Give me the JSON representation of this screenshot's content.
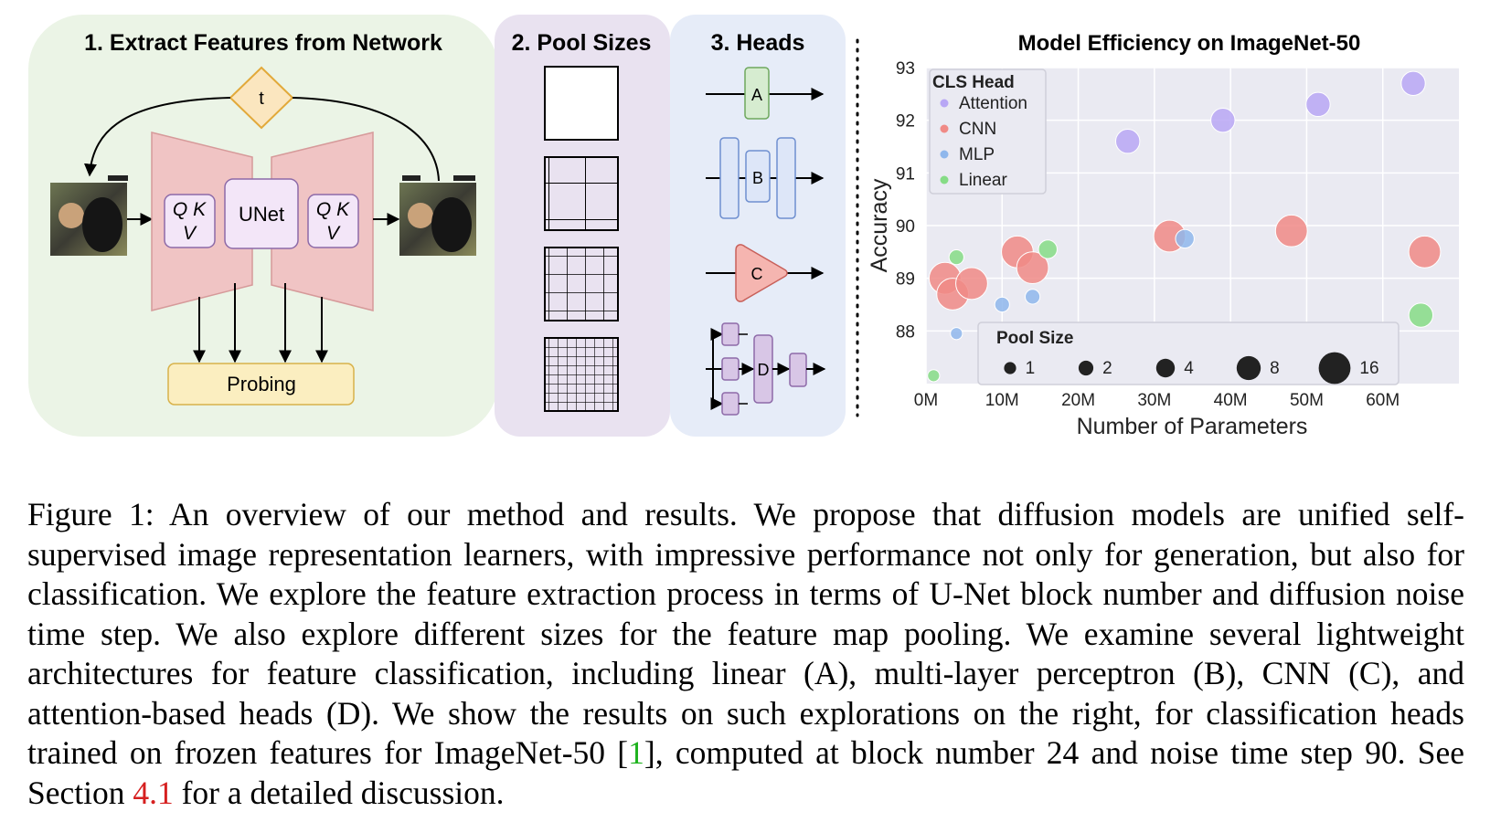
{
  "panel1": {
    "title": "1. Extract Features from Network",
    "timestep": "t",
    "qkv_left": [
      "Q K",
      "V"
    ],
    "unet": "UNet",
    "qkv_right": [
      "Q K",
      "V"
    ],
    "probing": "Probing"
  },
  "panel2": {
    "title": "2. Pool Sizes"
  },
  "panel3": {
    "title": "3. Heads",
    "heads": [
      "A",
      "B",
      "C",
      "D"
    ]
  },
  "colors": {
    "panel1_bg": "#ebf4e6",
    "panel2_bg": "#e9e2f0",
    "panel3_bg": "#e6ecf8",
    "plot_bg": "#eaeaf2",
    "attention": "#b8a7f5",
    "cnn": "#f08a86",
    "mlp": "#8fb7ec",
    "linear": "#86dc86",
    "unet_pink": "#f0c4c4",
    "probing_yellow": "#fbeec0"
  },
  "chart_data": {
    "type": "scatter",
    "title": "Model Efficiency on ImageNet-50",
    "xlabel": "Number of Parameters",
    "ylabel": "Accuracy",
    "xlim": [
      0,
      70
    ],
    "ylim": [
      87.0,
      93.0
    ],
    "x_ticks": [
      0,
      10,
      20,
      30,
      40,
      50,
      60
    ],
    "x_tick_labels": [
      "0M",
      "10M",
      "20M",
      "30M",
      "40M",
      "50M",
      "60M"
    ],
    "y_ticks": [
      88,
      89,
      90,
      91,
      92,
      93
    ],
    "y_tick_labels": [
      "88",
      "89",
      "90",
      "91",
      "92",
      "93"
    ],
    "grid": true,
    "legend_placement": "top-left",
    "legend_title": "CLS Head",
    "size_legend_title": "Pool Size",
    "size_legend": [
      1,
      2,
      4,
      8,
      16
    ],
    "series": [
      {
        "name": "Attention",
        "color": "#b8a7f5",
        "points": [
          {
            "x": 13.5,
            "y": 91.7,
            "pool": 8
          },
          {
            "x": 26.5,
            "y": 91.6,
            "pool": 8
          },
          {
            "x": 39,
            "y": 92.0,
            "pool": 8
          },
          {
            "x": 51.5,
            "y": 92.3,
            "pool": 8
          },
          {
            "x": 64,
            "y": 92.7,
            "pool": 8
          }
        ]
      },
      {
        "name": "CNN",
        "color": "#f08a86",
        "points": [
          {
            "x": 2.5,
            "y": 89.0,
            "pool": 16
          },
          {
            "x": 3.5,
            "y": 88.7,
            "pool": 16
          },
          {
            "x": 6,
            "y": 88.9,
            "pool": 16
          },
          {
            "x": 12,
            "y": 89.5,
            "pool": 16
          },
          {
            "x": 14,
            "y": 89.2,
            "pool": 16
          },
          {
            "x": 32,
            "y": 89.8,
            "pool": 16
          },
          {
            "x": 48,
            "y": 89.9,
            "pool": 16
          },
          {
            "x": 65.5,
            "y": 89.5,
            "pool": 16
          }
        ]
      },
      {
        "name": "MLP",
        "color": "#8fb7ec",
        "points": [
          {
            "x": 4,
            "y": 87.95,
            "pool": 1
          },
          {
            "x": 10,
            "y": 88.5,
            "pool": 2
          },
          {
            "x": 14,
            "y": 88.65,
            "pool": 2
          },
          {
            "x": 34,
            "y": 89.75,
            "pool": 4
          }
        ]
      },
      {
        "name": "Linear",
        "color": "#86dc86",
        "points": [
          {
            "x": 1,
            "y": 87.15,
            "pool": 1
          },
          {
            "x": 4,
            "y": 89.4,
            "pool": 2
          },
          {
            "x": 16,
            "y": 89.55,
            "pool": 4
          },
          {
            "x": 65,
            "y": 88.3,
            "pool": 8
          }
        ]
      }
    ]
  },
  "caption": {
    "part1": "Figure 1: An overview of our method and results. We propose that diffusion models are unified self-supervised image representation learners, with impressive performance not only for generation, but also for classification. We explore the feature extraction process in terms of U-Net block number and diffusion noise time step. We also explore different sizes for the feature map pooling. We examine several lightweight architectures for feature classification, including linear (A), multi-layer perceptron (B), CNN (C), and attention-based heads (D). We show the results on such explorations on the right, for classification heads trained on frozen features for ImageNet-50 [",
    "ref1": "1",
    "part2": "], computed at block number 24 and noise time step 90. See Section ",
    "ref2": "4.1",
    "part3": " for a detailed discussion."
  }
}
